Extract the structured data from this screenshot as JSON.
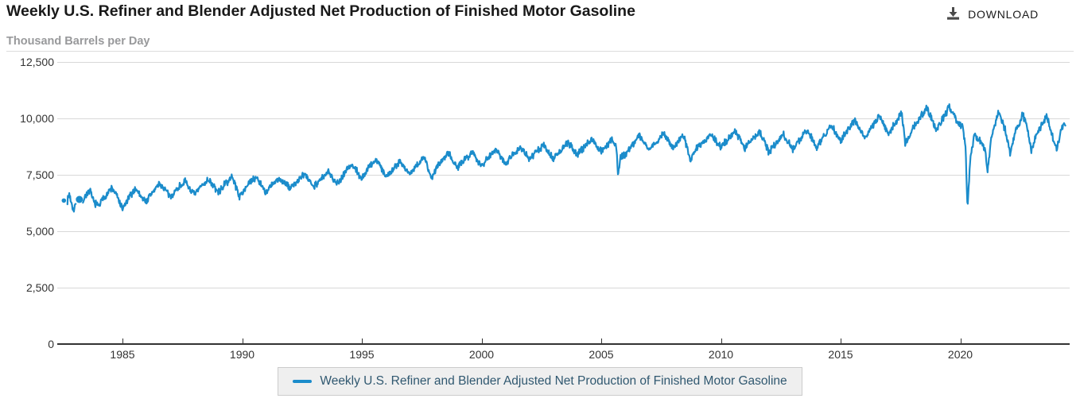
{
  "header": {
    "title": "Weekly U.S. Refiner and Blender Adjusted Net Production of Finished Motor Gasoline",
    "units_label": "Thousand Barrels per Day",
    "download_label": "DOWNLOAD"
  },
  "legend": {
    "label": "Weekly U.S. Refiner and Blender Adjusted Net Production of Finished Motor Gasoline"
  },
  "colors": {
    "series": "#1b8ccb",
    "grid": "#d8d8d8",
    "plot_top_border": "#dcdcdc",
    "axis": "#333333",
    "tick_text": "#333333",
    "title_text": "#191919",
    "subtitle_text": "#98999b",
    "legend_bg": "#efefef",
    "legend_border": "#cccccc",
    "legend_text": "#305870",
    "download": "#4a4a4a"
  },
  "chart_data": {
    "type": "line",
    "title": "Weekly U.S. Refiner and Blender Adjusted Net Production of Finished Motor Gasoline",
    "xlabel": "",
    "ylabel": "Thousand Barrels per Day",
    "xlim": [
      1982.2,
      2024.6
    ],
    "ylim": [
      0,
      12500
    ],
    "grid": true,
    "legend_position": "bottom",
    "x_ticks": [
      {
        "v": 1985,
        "label": "1985"
      },
      {
        "v": 1990,
        "label": "1990"
      },
      {
        "v": 1995,
        "label": "1995"
      },
      {
        "v": 2000,
        "label": "2000"
      },
      {
        "v": 2005,
        "label": "2005"
      },
      {
        "v": 2010,
        "label": "2010"
      },
      {
        "v": 2015,
        "label": "2015"
      },
      {
        "v": 2020,
        "label": "2020"
      }
    ],
    "y_ticks": [
      {
        "v": 0,
        "label": "0"
      },
      {
        "v": 2500,
        "label": "2,500"
      },
      {
        "v": 5000,
        "label": "5,000"
      },
      {
        "v": 7500,
        "label": "7,500"
      },
      {
        "v": 10000,
        "label": "10,000"
      },
      {
        "v": 12500,
        "label": "12,500"
      }
    ],
    "series": [
      {
        "name": "Weekly U.S. Refiner and Blender Adjusted Net Production of Finished Motor Gasoline",
        "color": "#1b8ccb",
        "units": "thousand barrels per day",
        "isolated_points": [
          {
            "x": 1982.55,
            "y": 6350,
            "r": 2.8
          },
          {
            "x": 1983.2,
            "y": 6400,
            "r": 4.5
          }
        ],
        "segments": [
          [
            [
              1982.7,
              6350
            ],
            [
              1982.78,
              6650
            ],
            [
              1982.88,
              6200
            ],
            [
              1982.97,
              5900
            ],
            [
              1983.05,
              6200
            ]
          ],
          [
            [
              1983.35,
              6350
            ],
            [
              1983.5,
              6650
            ],
            [
              1983.65,
              6750
            ],
            [
              1983.8,
              6300
            ],
            [
              1984.0,
              6100
            ],
            [
              1984.2,
              6450
            ],
            [
              1984.55,
              6900
            ],
            [
              1984.75,
              6600
            ],
            [
              1985.0,
              5950
            ],
            [
              1985.2,
              6350
            ],
            [
              1985.55,
              6900
            ],
            [
              1985.8,
              6500
            ],
            [
              1986.0,
              6300
            ],
            [
              1986.2,
              6650
            ],
            [
              1986.55,
              7100
            ],
            [
              1986.8,
              6800
            ],
            [
              1987.0,
              6500
            ],
            [
              1987.3,
              6900
            ],
            [
              1987.6,
              7200
            ],
            [
              1988.0,
              6600
            ],
            [
              1988.3,
              7000
            ],
            [
              1988.6,
              7300
            ],
            [
              1989.0,
              6700
            ],
            [
              1989.3,
              7100
            ],
            [
              1989.6,
              7400
            ],
            [
              1989.9,
              6500
            ],
            [
              1990.1,
              6900
            ],
            [
              1990.6,
              7400
            ],
            [
              1991.0,
              6700
            ],
            [
              1991.3,
              7100
            ],
            [
              1991.6,
              7300
            ],
            [
              1992.0,
              6900
            ],
            [
              1992.6,
              7500
            ],
            [
              1993.0,
              7000
            ],
            [
              1993.6,
              7600
            ],
            [
              1994.0,
              7100
            ],
            [
              1994.4,
              7800
            ],
            [
              1994.65,
              7900
            ],
            [
              1995.0,
              7300
            ],
            [
              1995.4,
              8000
            ],
            [
              1995.65,
              8150
            ],
            [
              1996.0,
              7400
            ],
            [
              1996.6,
              8100
            ],
            [
              1997.0,
              7500
            ],
            [
              1997.6,
              8300
            ],
            [
              1997.9,
              7300
            ],
            [
              1998.1,
              7800
            ],
            [
              1998.6,
              8500
            ],
            [
              1999.0,
              7800
            ],
            [
              1999.6,
              8500
            ],
            [
              2000.0,
              7900
            ],
            [
              2000.6,
              8650
            ],
            [
              2001.0,
              8000
            ],
            [
              2001.6,
              8700
            ],
            [
              2002.0,
              8200
            ],
            [
              2002.6,
              8800
            ],
            [
              2003.0,
              8200
            ],
            [
              2003.6,
              8900
            ],
            [
              2004.0,
              8400
            ],
            [
              2004.6,
              9100
            ],
            [
              2005.0,
              8500
            ],
            [
              2005.45,
              9100
            ],
            [
              2005.63,
              8700
            ],
            [
              2005.7,
              7550
            ],
            [
              2005.82,
              8300
            ],
            [
              2006.0,
              8400
            ],
            [
              2006.6,
              9250
            ],
            [
              2007.0,
              8600
            ],
            [
              2007.6,
              9300
            ],
            [
              2008.0,
              8700
            ],
            [
              2008.45,
              9250
            ],
            [
              2008.72,
              8100
            ],
            [
              2009.0,
              8700
            ],
            [
              2009.6,
              9250
            ],
            [
              2010.0,
              8700
            ],
            [
              2010.6,
              9450
            ],
            [
              2011.0,
              8700
            ],
            [
              2011.6,
              9400
            ],
            [
              2012.0,
              8500
            ],
            [
              2012.6,
              9300
            ],
            [
              2013.0,
              8600
            ],
            [
              2013.6,
              9500
            ],
            [
              2014.0,
              8700
            ],
            [
              2014.6,
              9700
            ],
            [
              2015.0,
              9000
            ],
            [
              2015.6,
              9900
            ],
            [
              2016.0,
              9100
            ],
            [
              2016.6,
              10100
            ],
            [
              2017.0,
              9300
            ],
            [
              2017.55,
              10250
            ],
            [
              2017.7,
              8850
            ],
            [
              2018.0,
              9500
            ],
            [
              2018.6,
              10450
            ],
            [
              2019.0,
              9500
            ],
            [
              2019.55,
              10500
            ],
            [
              2019.9,
              9800
            ],
            [
              2020.1,
              9600
            ],
            [
              2020.22,
              8700
            ],
            [
              2020.3,
              5950
            ],
            [
              2020.42,
              8200
            ],
            [
              2020.6,
              9300
            ],
            [
              2020.9,
              8900
            ],
            [
              2021.05,
              8600
            ],
            [
              2021.13,
              7650
            ],
            [
              2021.3,
              9200
            ],
            [
              2021.6,
              10250
            ],
            [
              2021.9,
              9400
            ],
            [
              2022.08,
              8400
            ],
            [
              2022.3,
              9400
            ],
            [
              2022.6,
              10150
            ],
            [
              2022.8,
              9600
            ],
            [
              2022.97,
              8550
            ],
            [
              2023.15,
              9200
            ],
            [
              2023.6,
              10100
            ],
            [
              2023.9,
              9000
            ],
            [
              2024.05,
              8650
            ],
            [
              2024.2,
              9500
            ],
            [
              2024.4,
              9800
            ]
          ]
        ],
        "noise": {
          "seed": 7,
          "weekly_amp": 115,
          "secondary_amp": 65,
          "samples_per_year": 52
        }
      }
    ]
  }
}
